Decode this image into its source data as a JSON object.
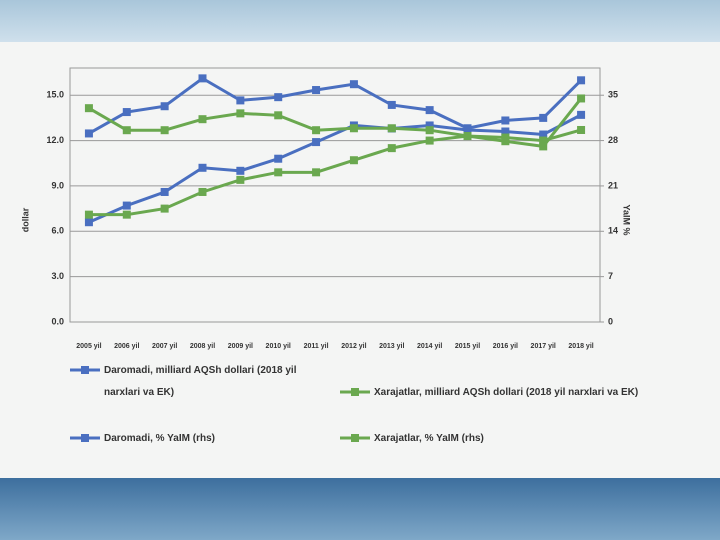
{
  "chart_data": {
    "type": "line",
    "categories": [
      "2005 yil",
      "2006 yil",
      "2007 yil",
      "2008 yil",
      "2009 yil",
      "2010 yil",
      "2011 yil",
      "2012 yil",
      "2013 yil",
      "2014 yil",
      "2015 yil",
      "2016 yil",
      "2017 yil",
      "2018 yil"
    ],
    "y_label": "dollar",
    "y2_label": "YaIM %",
    "ylim": [
      0,
      16.8
    ],
    "yticks": [
      {
        "value": 0,
        "label": "0.0"
      },
      {
        "value": 3,
        "label": "3.0"
      },
      {
        "value": 6,
        "label": "6.0"
      },
      {
        "value": 9,
        "label": "9.0"
      },
      {
        "value": 12,
        "label": "12.0"
      },
      {
        "value": 15,
        "label": "15.0"
      }
    ],
    "y2lim": [
      0,
      39.2
    ],
    "y2ticks": [
      0,
      7,
      14,
      21,
      28,
      35
    ],
    "grid": true,
    "series": [
      {
        "name": "Daromadi, milliard AQSh dollari (2018 yil narxlari va EK)",
        "color": "#4a6fc0",
        "values": [
          6.6,
          7.7,
          8.6,
          10.2,
          10.0,
          10.8,
          11.9,
          13.0,
          12.8,
          13.0,
          12.7,
          12.6,
          12.4,
          13.7
        ]
      },
      {
        "name": "Xarajatlar, milliard AQSh dollari (2018 yil narxlari va EK)",
        "color": "#6aa84f",
        "values": [
          7.1,
          7.1,
          7.5,
          8.6,
          9.4,
          9.9,
          9.9,
          10.7,
          11.5,
          12.0,
          12.3,
          12.2,
          12.0,
          12.7
        ]
      },
      {
        "name": "Daromadi, % YaIM (rhs)",
        "color": "#4a6fc0",
        "axis": "y2",
        "values": [
          29.1,
          32.4,
          33.3,
          37.6,
          34.2,
          34.7,
          35.8,
          36.7,
          33.5,
          32.7,
          29.9,
          31.1,
          31.5,
          37.3
        ]
      },
      {
        "name": "Xarajatlar, % YaIM (rhs)",
        "color": "#6aa84f",
        "axis": "y2",
        "values": [
          33.0,
          29.6,
          29.6,
          31.3,
          32.2,
          31.9,
          29.6,
          29.9,
          29.9,
          29.6,
          28.7,
          27.9,
          27.1,
          34.5
        ]
      }
    ]
  }
}
